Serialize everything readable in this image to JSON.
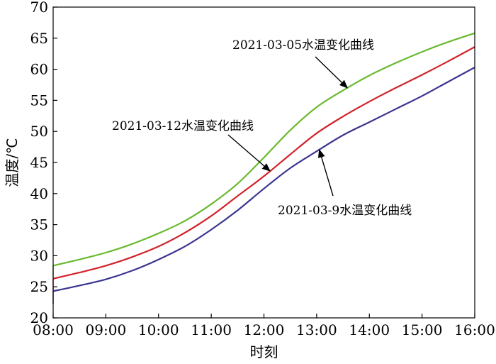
{
  "chart_data": {
    "type": "line",
    "xlabel": "时刻",
    "ylabel": "温度/℃",
    "ylim": [
      20,
      70
    ],
    "yticks": [
      20,
      25,
      30,
      35,
      40,
      45,
      50,
      55,
      60,
      65,
      70
    ],
    "xticks": [
      "08:00",
      "09:00",
      "10:00",
      "11:00",
      "12:00",
      "13:00",
      "14:00",
      "15:00",
      "16:00"
    ],
    "x": [
      "08:00",
      "08:30",
      "09:00",
      "09:30",
      "10:00",
      "10:30",
      "11:00",
      "11:30",
      "12:00",
      "12:30",
      "13:00",
      "13:30",
      "14:00",
      "14:30",
      "15:00",
      "15:30",
      "16:00"
    ],
    "series": [
      {
        "name": "2021-03-05水温变化曲线",
        "color": "#6ab92f",
        "values": [
          28.4,
          29.4,
          30.5,
          31.9,
          33.6,
          35.6,
          38.3,
          41.6,
          45.8,
          50.2,
          53.9,
          56.6,
          59.0,
          61.0,
          62.8,
          64.4,
          65.8
        ]
      },
      {
        "name": "2021-03-12水温变化曲线",
        "color": "#d2232a",
        "values": [
          26.3,
          27.3,
          28.4,
          29.8,
          31.5,
          33.7,
          36.4,
          39.6,
          42.8,
          46.3,
          49.7,
          52.4,
          54.8,
          57.0,
          59.1,
          61.3,
          63.6
        ]
      },
      {
        "name": "2021-03-9水温变化曲线",
        "color": "#3a3590",
        "values": [
          24.3,
          25.2,
          26.2,
          27.6,
          29.4,
          31.5,
          34.2,
          37.3,
          40.8,
          44.1,
          46.8,
          49.4,
          51.5,
          53.6,
          55.7,
          58.0,
          60.3
        ]
      }
    ],
    "annotations": [
      {
        "text": "2021-03-05水温变化曲线",
        "series": 0
      },
      {
        "text": "2021-03-12水温变化曲线",
        "series": 1
      },
      {
        "text": "2021-03-9水温变化曲线",
        "series": 2
      }
    ],
    "grid": false,
    "legend": "none"
  }
}
